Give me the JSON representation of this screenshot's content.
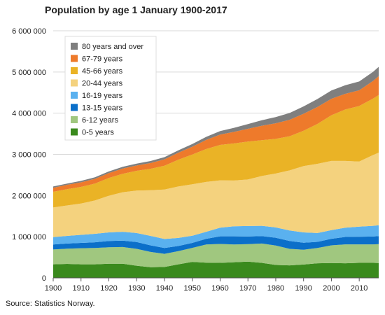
{
  "chart_data": {
    "type": "area",
    "stacked": true,
    "title": "Population by age 1 January 1900-2017",
    "source": "Source: Statistics Norway.",
    "xlabel": "",
    "ylabel": "",
    "xlim": [
      1900,
      2017
    ],
    "ylim": [
      0,
      6000000
    ],
    "x_ticks": [
      1900,
      1910,
      1920,
      1930,
      1940,
      1950,
      1960,
      1970,
      1980,
      1990,
      2000,
      2010
    ],
    "y_ticks": [
      0,
      1000000,
      2000000,
      3000000,
      4000000,
      5000000,
      6000000
    ],
    "y_tick_labels": [
      "0",
      "1 000 000",
      "2 000 000",
      "3 000 000",
      "4 000 000",
      "5 000 000",
      "6 000 000"
    ],
    "grid": "horizontal",
    "legend_position": "top-left",
    "x": [
      1900,
      1905,
      1910,
      1915,
      1920,
      1925,
      1930,
      1935,
      1940,
      1945,
      1950,
      1955,
      1960,
      1965,
      1970,
      1975,
      1980,
      1985,
      1990,
      1995,
      2000,
      2005,
      2010,
      2015,
      2017
    ],
    "series": [
      {
        "name": "0-5 years",
        "color": "#3a8a1d",
        "values": [
          330000,
          340000,
          330000,
          330000,
          345000,
          345000,
          295000,
          260000,
          265000,
          330000,
          390000,
          370000,
          365000,
          380000,
          395000,
          365000,
          315000,
          305000,
          325000,
          355000,
          360000,
          355000,
          365000,
          365000,
          360000
        ]
      },
      {
        "name": "6-12 years",
        "color": "#a0c77f",
        "values": [
          360000,
          370000,
          390000,
          395000,
          400000,
          405000,
          410000,
          370000,
          320000,
          320000,
          340000,
          440000,
          460000,
          430000,
          425000,
          470000,
          470000,
          400000,
          360000,
          370000,
          430000,
          460000,
          450000,
          450000,
          460000
        ]
      },
      {
        "name": "13-15 years",
        "color": "#0b6fc9",
        "values": [
          120000,
          125000,
          130000,
          140000,
          150000,
          155000,
          165000,
          160000,
          140000,
          125000,
          120000,
          140000,
          185000,
          200000,
          185000,
          180000,
          190000,
          190000,
          170000,
          150000,
          160000,
          180000,
          185000,
          190000,
          195000
        ]
      },
      {
        "name": "16-19 years",
        "color": "#5ab1ef",
        "values": [
          180000,
          185000,
          195000,
          205000,
          210000,
          215000,
          220000,
          230000,
          220000,
          195000,
          175000,
          170000,
          210000,
          245000,
          255000,
          250000,
          250000,
          255000,
          250000,
          215000,
          210000,
          225000,
          245000,
          260000,
          265000
        ]
      },
      {
        "name": "20-44 years",
        "color": "#f4d27e",
        "values": [
          720000,
          740000,
          760000,
          810000,
          890000,
          960000,
          1030000,
          1110000,
          1200000,
          1250000,
          1250000,
          1210000,
          1150000,
          1110000,
          1130000,
          1210000,
          1310000,
          1460000,
          1610000,
          1680000,
          1680000,
          1620000,
          1580000,
          1720000,
          1760000
        ]
      },
      {
        "name": "45-66 years",
        "color": "#eab326",
        "values": [
          380000,
          395000,
          405000,
          410000,
          430000,
          450000,
          480000,
          520000,
          580000,
          650000,
          720000,
          800000,
          860000,
          900000,
          920000,
          870000,
          840000,
          830000,
          860000,
          970000,
          1110000,
          1250000,
          1350000,
          1370000,
          1400000
        ]
      },
      {
        "name": "67-79 years",
        "color": "#ee7a2b",
        "values": [
          100000,
          105000,
          110000,
          115000,
          120000,
          125000,
          130000,
          140000,
          155000,
          170000,
          190000,
          220000,
          250000,
          280000,
          310000,
          350000,
          380000,
          400000,
          410000,
          410000,
          400000,
          380000,
          380000,
          430000,
          460000
        ]
      },
      {
        "name": "80 years and over",
        "color": "#7f7f7f",
        "values": [
          30000,
          32000,
          35000,
          38000,
          40000,
          42000,
          45000,
          48000,
          52000,
          58000,
          65000,
          75000,
          85000,
          100000,
          115000,
          135000,
          150000,
          165000,
          180000,
          195000,
          200000,
          210000,
          215000,
          220000,
          225000
        ]
      }
    ]
  }
}
